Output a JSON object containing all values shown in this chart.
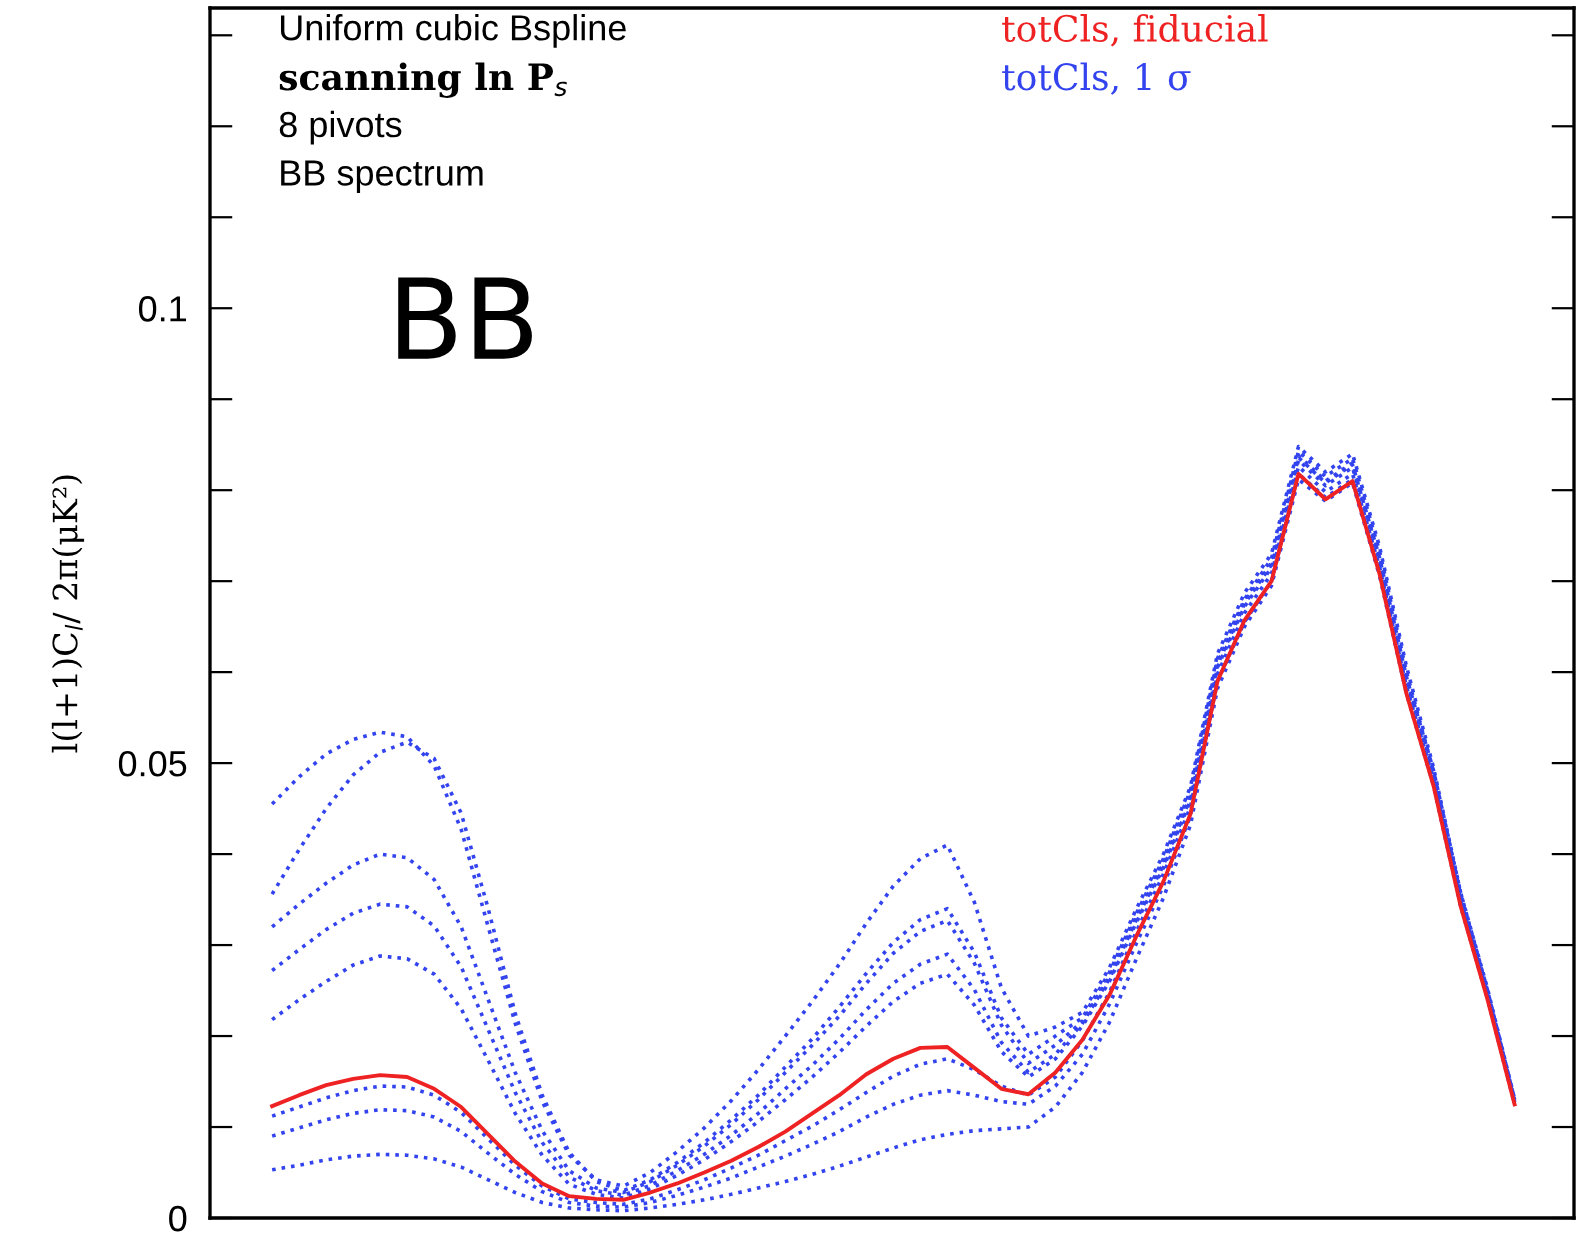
{
  "chart_data": {
    "type": "line",
    "ylabel": "l(l+1)C$_{l}$/ 2π(μK²)",
    "categories": [
      null,
      null,
      null,
      null,
      null,
      null,
      null,
      null,
      null,
      null,
      null,
      null,
      null,
      null,
      null,
      null,
      null,
      null,
      null,
      null,
      null,
      null,
      null,
      null,
      null,
      null,
      null,
      null,
      null,
      null,
      null,
      null,
      null,
      null,
      null,
      null,
      null,
      null,
      null,
      null,
      null,
      null,
      null,
      null,
      null,
      null,
      null
    ],
    "ylim": [
      0,
      0.133
    ],
    "yticks": [
      0,
      {
        "value": 0.01,
        "label": null
      },
      {
        "value": 0.02,
        "label": null
      },
      {
        "value": 0.03,
        "label": null
      },
      {
        "value": 0.04,
        "label": null
      },
      0.05,
      {
        "value": 0.06,
        "label": null
      },
      {
        "value": 0.07,
        "label": null
      },
      {
        "value": 0.08,
        "label": null
      },
      {
        "value": 0.09,
        "label": null
      },
      0.1,
      {
        "value": 0.11,
        "label": null
      },
      {
        "value": 0.12,
        "label": null
      },
      {
        "value": 0.13,
        "label": null
      }
    ],
    "grid": false,
    "legend": "top",
    "marker": "none",
    "annotations": [
      "Uniform cubic Bspline",
      "scanning ln P$_{s}$",
      "8 pivots",
      "BB spectrum",
      "BB"
    ],
    "series": [
      {
        "name": "totCls, 1 σ",
        "color": "#3344ee",
        "line_style": "dotted",
        "values": [
          0.0455,
          0.0485,
          0.051,
          0.0526,
          0.0534,
          0.0529,
          0.0497,
          0.0427,
          0.032,
          0.0214,
          0.0128,
          0.0069,
          0.0042,
          0.0035,
          0.005,
          0.0073,
          0.0099,
          0.0129,
          0.0163,
          0.02,
          0.0238,
          0.0279,
          0.0324,
          0.0365,
          0.0395,
          0.041,
          0.0347,
          0.0253,
          0.02,
          0.021,
          0.0226,
          0.0275,
          0.034,
          0.04,
          0.0474,
          0.062,
          0.0687,
          0.073,
          0.0848,
          0.082,
          0.084,
          0.0738,
          0.0606,
          0.0495,
          0.0358,
          0.025,
          0.013
        ]
      },
      {
        "color": "#3344ee",
        "line_style": "dotted",
        "values": [
          0.0356,
          0.0405,
          0.045,
          0.0487,
          0.0512,
          0.0523,
          0.0505,
          0.0445,
          0.034,
          0.0225,
          0.0135,
          0.0072,
          0.004,
          0.003,
          0.0042,
          0.0061,
          0.0083,
          0.0108,
          0.0135,
          0.0166,
          0.0197,
          0.0232,
          0.0269,
          0.0303,
          0.0328,
          0.034,
          0.0292,
          0.022,
          0.018,
          0.02,
          0.022,
          0.027,
          0.0335,
          0.0395,
          0.047,
          0.0615,
          0.068,
          0.0725,
          0.0843,
          0.0815,
          0.0835,
          0.0733,
          0.06,
          0.049,
          0.0355,
          0.0248,
          0.0129
        ]
      },
      {
        "color": "#3344ee",
        "line_style": "dotted",
        "values": [
          0.032,
          0.0345,
          0.0368,
          0.0388,
          0.04,
          0.0396,
          0.0372,
          0.032,
          0.024,
          0.016,
          0.0096,
          0.0052,
          0.0033,
          0.0028,
          0.004,
          0.0058,
          0.0079,
          0.0103,
          0.013,
          0.016,
          0.019,
          0.0222,
          0.0258,
          0.0291,
          0.0315,
          0.0327,
          0.028,
          0.0212,
          0.017,
          0.019,
          0.0216,
          0.0265,
          0.033,
          0.039,
          0.0464,
          0.061,
          0.0677,
          0.072,
          0.0838,
          0.081,
          0.083,
          0.0728,
          0.0596,
          0.049,
          0.0353,
          0.0246,
          0.0127
        ]
      },
      {
        "color": "#3344ee",
        "line_style": "dotted",
        "values": [
          0.0272,
          0.0295,
          0.0317,
          0.0335,
          0.0345,
          0.0342,
          0.0321,
          0.0276,
          0.0207,
          0.0138,
          0.0083,
          0.0045,
          0.003,
          0.0025,
          0.0036,
          0.0052,
          0.007,
          0.0091,
          0.0115,
          0.0142,
          0.0168,
          0.0197,
          0.0229,
          0.0258,
          0.0279,
          0.029,
          0.0251,
          0.0193,
          0.016,
          0.018,
          0.0214,
          0.0263,
          0.0328,
          0.0388,
          0.0462,
          0.0608,
          0.0675,
          0.0718,
          0.0836,
          0.0808,
          0.0828,
          0.0726,
          0.0594,
          0.0492,
          0.0358,
          0.0252,
          0.0131
        ]
      },
      {
        "color": "#3344ee",
        "line_style": "dotted",
        "values": [
          0.0218,
          0.024,
          0.026,
          0.0278,
          0.0288,
          0.0285,
          0.0268,
          0.023,
          0.0173,
          0.0115,
          0.0069,
          0.0037,
          0.0026,
          0.0022,
          0.0032,
          0.0047,
          0.0064,
          0.0084,
          0.0106,
          0.013,
          0.0155,
          0.0182,
          0.0211,
          0.0238,
          0.0258,
          0.0268,
          0.0234,
          0.0183,
          0.0155,
          0.0175,
          0.0211,
          0.026,
          0.0325,
          0.0385,
          0.0459,
          0.0605,
          0.0672,
          0.0715,
          0.0833,
          0.0805,
          0.0825,
          0.0723,
          0.0591,
          0.0489,
          0.0356,
          0.025,
          0.013
        ]
      },
      {
        "color": "#3344ee",
        "line_style": "dotted",
        "values": [
          0.0112,
          0.0122,
          0.0132,
          0.014,
          0.0145,
          0.0144,
          0.0135,
          0.0116,
          0.0087,
          0.0058,
          0.0035,
          0.0021,
          0.0017,
          0.0015,
          0.0021,
          0.0031,
          0.0042,
          0.0055,
          0.0069,
          0.0085,
          0.0101,
          0.0119,
          0.0138,
          0.0156,
          0.0169,
          0.0175,
          0.0163,
          0.0145,
          0.0135,
          0.0155,
          0.0195,
          0.0248,
          0.0315,
          0.0378,
          0.0452,
          0.0598,
          0.0665,
          0.0708,
          0.0826,
          0.0798,
          0.0818,
          0.0716,
          0.0584,
          0.0482,
          0.035,
          0.0246,
          0.0128
        ]
      },
      {
        "color": "#3344ee",
        "line_style": "dotted",
        "values": [
          0.009,
          0.0099,
          0.0108,
          0.0115,
          0.0119,
          0.0118,
          0.0111,
          0.0095,
          0.0071,
          0.0048,
          0.0029,
          0.0017,
          0.0013,
          0.0012,
          0.0017,
          0.0025,
          0.0034,
          0.0044,
          0.0056,
          0.0068,
          0.0081,
          0.0095,
          0.0111,
          0.0125,
          0.0135,
          0.014,
          0.0135,
          0.0128,
          0.0125,
          0.0145,
          0.018,
          0.0235,
          0.0302,
          0.0365,
          0.0442,
          0.059,
          0.0655,
          0.07,
          0.0818,
          0.0792,
          0.0812,
          0.0712,
          0.058,
          0.0478,
          0.0346,
          0.0244,
          0.0127
        ]
      },
      {
        "color": "#3344ee",
        "line_style": "dotted",
        "values": [
          0.0053,
          0.0058,
          0.0064,
          0.0068,
          0.007,
          0.0069,
          0.0065,
          0.0056,
          0.0042,
          0.0028,
          0.0017,
          0.0011,
          0.0009,
          0.0008,
          0.0011,
          0.0015,
          0.002,
          0.0026,
          0.0033,
          0.004,
          0.0048,
          0.0057,
          0.0067,
          0.0077,
          0.0086,
          0.0092,
          0.0096,
          0.0098,
          0.01,
          0.0122,
          0.016,
          0.0215,
          0.0285,
          0.0352,
          0.0432,
          0.0582,
          0.065,
          0.0695,
          0.0812,
          0.0788,
          0.0808,
          0.0706,
          0.0576,
          0.0475,
          0.0343,
          0.0241,
          0.0125
        ]
      },
      {
        "name": "totCls, fiducial",
        "color": "#ee2222",
        "line_style": "solid",
        "values": [
          0.0123,
          0.0135,
          0.0146,
          0.0153,
          0.0157,
          0.0155,
          0.0142,
          0.0122,
          0.0092,
          0.0062,
          0.0038,
          0.0024,
          0.0021,
          0.002,
          0.0028,
          0.0038,
          0.005,
          0.0063,
          0.0078,
          0.0095,
          0.0115,
          0.0135,
          0.0158,
          0.0175,
          0.0187,
          0.0188,
          0.0165,
          0.0142,
          0.0136,
          0.016,
          0.0196,
          0.0245,
          0.031,
          0.037,
          0.0444,
          0.059,
          0.0657,
          0.07,
          0.0818,
          0.079,
          0.081,
          0.0708,
          0.0576,
          0.0475,
          0.0343,
          0.024,
          0.0125
        ]
      }
    ]
  }
}
